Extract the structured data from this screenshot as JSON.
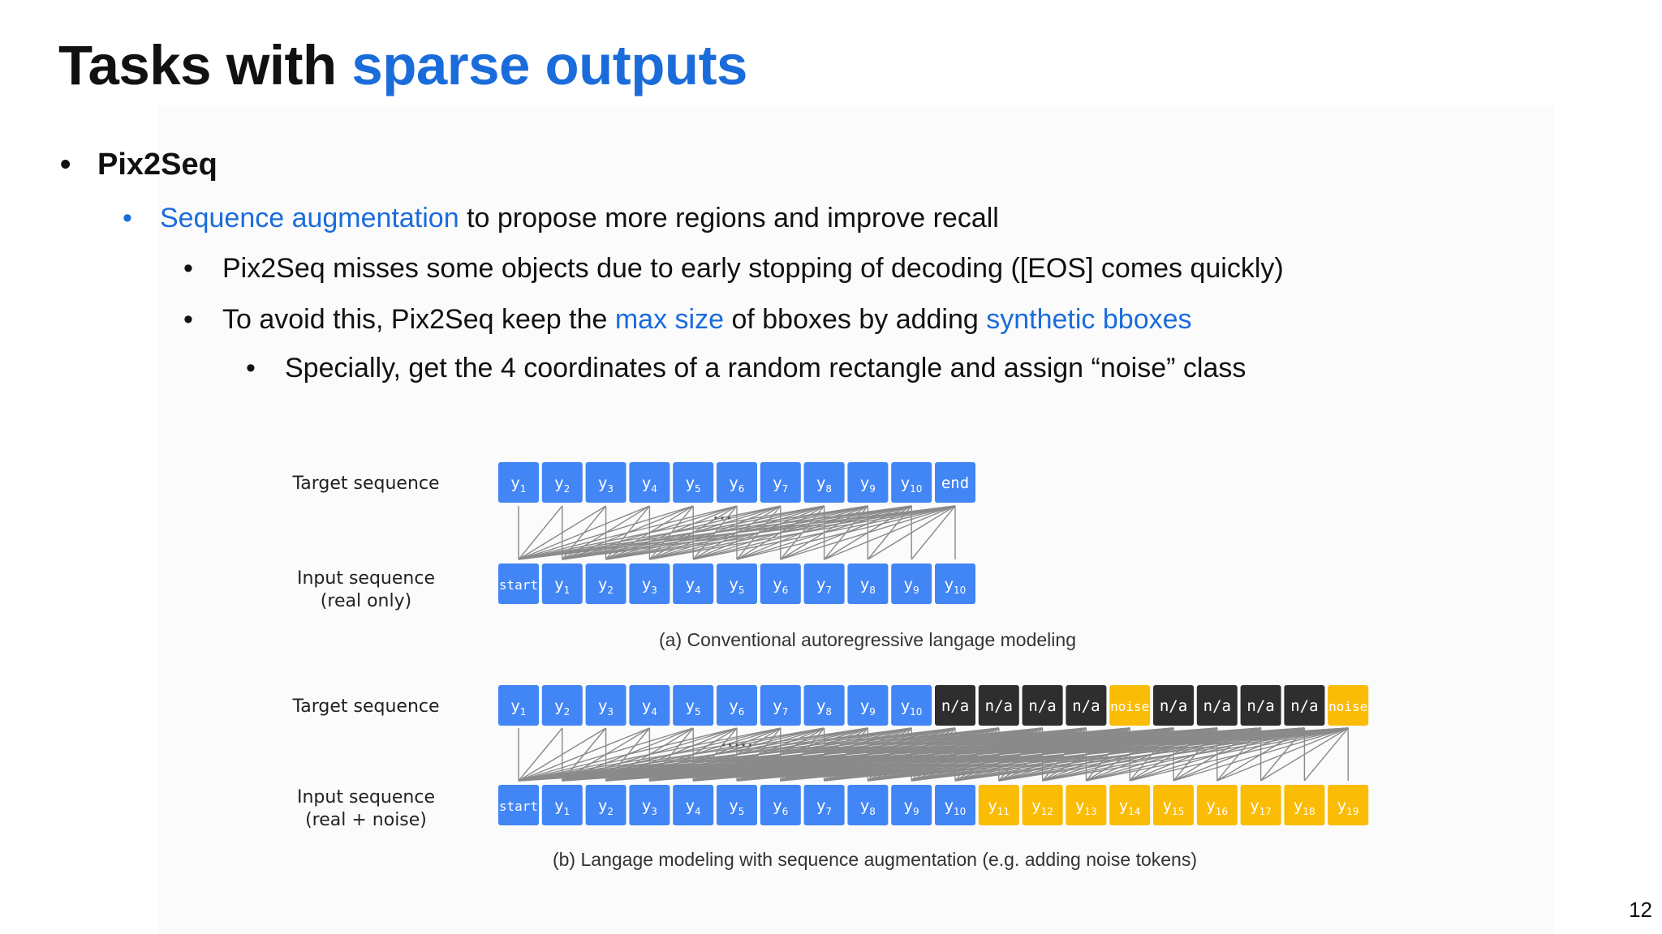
{
  "title": {
    "main": "Tasks with",
    "accent": "sparse outputs"
  },
  "bullets": {
    "level1": "Pix2Seq",
    "level2": {
      "accent": "Sequence augmentation",
      "rest": "to propose more regions and improve recall"
    },
    "level3_a": "Pix2Seq misses some objects due to early stopping of decoding ([EOS] comes quickly)",
    "level3_b": {
      "part1": "To avoid this, Pix2Seq keep the",
      "accent1": "max size",
      "part2": "of bboxes by adding",
      "accent2": "synthetic bboxes"
    },
    "level4": "Specially, get the 4 coordinates of a random rectangle and assign “noise” class"
  },
  "figure": {
    "colors": {
      "real": "#4285f4",
      "na": "#2e2e2e",
      "noise": "#fbbc05",
      "line": "#8a8a8a"
    },
    "a": {
      "target_label": "Target sequence",
      "input_label_1": "Input sequence",
      "input_label_2": "(real only)",
      "ellipsis": "···",
      "caption": "(a) Conventional autoregressive langage modeling",
      "target_tokens": [
        {
          "base": "y",
          "sub": "1",
          "kind": "real"
        },
        {
          "base": "y",
          "sub": "2",
          "kind": "real"
        },
        {
          "base": "y",
          "sub": "3",
          "kind": "real"
        },
        {
          "base": "y",
          "sub": "4",
          "kind": "real"
        },
        {
          "base": "y",
          "sub": "5",
          "kind": "real"
        },
        {
          "base": "y",
          "sub": "6",
          "kind": "real"
        },
        {
          "base": "y",
          "sub": "7",
          "kind": "real"
        },
        {
          "base": "y",
          "sub": "8",
          "kind": "real"
        },
        {
          "base": "y",
          "sub": "9",
          "kind": "real"
        },
        {
          "base": "y",
          "sub": "10",
          "kind": "real"
        },
        {
          "base": "end",
          "sub": "",
          "kind": "real"
        }
      ],
      "input_tokens": [
        {
          "base": "start",
          "sub": "",
          "kind": "real"
        },
        {
          "base": "y",
          "sub": "1",
          "kind": "real"
        },
        {
          "base": "y",
          "sub": "2",
          "kind": "real"
        },
        {
          "base": "y",
          "sub": "3",
          "kind": "real"
        },
        {
          "base": "y",
          "sub": "4",
          "kind": "real"
        },
        {
          "base": "y",
          "sub": "5",
          "kind": "real"
        },
        {
          "base": "y",
          "sub": "6",
          "kind": "real"
        },
        {
          "base": "y",
          "sub": "7",
          "kind": "real"
        },
        {
          "base": "y",
          "sub": "8",
          "kind": "real"
        },
        {
          "base": "y",
          "sub": "9",
          "kind": "real"
        },
        {
          "base": "y",
          "sub": "10",
          "kind": "real"
        }
      ]
    },
    "b": {
      "target_label": "Target sequence",
      "input_label_1": "Input sequence",
      "input_label_2": "(real + noise)",
      "ellipsis": "·····",
      "caption": "(b) Langage modeling with sequence augmentation (e.g. adding noise tokens)",
      "target_tokens": [
        {
          "base": "y",
          "sub": "1",
          "kind": "real"
        },
        {
          "base": "y",
          "sub": "2",
          "kind": "real"
        },
        {
          "base": "y",
          "sub": "3",
          "kind": "real"
        },
        {
          "base": "y",
          "sub": "4",
          "kind": "real"
        },
        {
          "base": "y",
          "sub": "5",
          "kind": "real"
        },
        {
          "base": "y",
          "sub": "6",
          "kind": "real"
        },
        {
          "base": "y",
          "sub": "7",
          "kind": "real"
        },
        {
          "base": "y",
          "sub": "8",
          "kind": "real"
        },
        {
          "base": "y",
          "sub": "9",
          "kind": "real"
        },
        {
          "base": "y",
          "sub": "10",
          "kind": "real"
        },
        {
          "base": "n/a",
          "sub": "",
          "kind": "na"
        },
        {
          "base": "n/a",
          "sub": "",
          "kind": "na"
        },
        {
          "base": "n/a",
          "sub": "",
          "kind": "na"
        },
        {
          "base": "n/a",
          "sub": "",
          "kind": "na"
        },
        {
          "base": "noise",
          "sub": "",
          "kind": "noise"
        },
        {
          "base": "n/a",
          "sub": "",
          "kind": "na"
        },
        {
          "base": "n/a",
          "sub": "",
          "kind": "na"
        },
        {
          "base": "n/a",
          "sub": "",
          "kind": "na"
        },
        {
          "base": "n/a",
          "sub": "",
          "kind": "na"
        },
        {
          "base": "noise",
          "sub": "",
          "kind": "noise"
        }
      ],
      "input_tokens": [
        {
          "base": "start",
          "sub": "",
          "kind": "real"
        },
        {
          "base": "y",
          "sub": "1",
          "kind": "real"
        },
        {
          "base": "y",
          "sub": "2",
          "kind": "real"
        },
        {
          "base": "y",
          "sub": "3",
          "kind": "real"
        },
        {
          "base": "y",
          "sub": "4",
          "kind": "real"
        },
        {
          "base": "y",
          "sub": "5",
          "kind": "real"
        },
        {
          "base": "y",
          "sub": "6",
          "kind": "real"
        },
        {
          "base": "y",
          "sub": "7",
          "kind": "real"
        },
        {
          "base": "y",
          "sub": "8",
          "kind": "real"
        },
        {
          "base": "y",
          "sub": "9",
          "kind": "real"
        },
        {
          "base": "y",
          "sub": "10",
          "kind": "real"
        },
        {
          "base": "y",
          "sub": "11",
          "kind": "noise"
        },
        {
          "base": "y",
          "sub": "12",
          "kind": "noise"
        },
        {
          "base": "y",
          "sub": "13",
          "kind": "noise"
        },
        {
          "base": "y",
          "sub": "14",
          "kind": "noise"
        },
        {
          "base": "y",
          "sub": "15",
          "kind": "noise"
        },
        {
          "base": "y",
          "sub": "16",
          "kind": "noise"
        },
        {
          "base": "y",
          "sub": "17",
          "kind": "noise"
        },
        {
          "base": "y",
          "sub": "18",
          "kind": "noise"
        },
        {
          "base": "y",
          "sub": "19",
          "kind": "noise"
        }
      ]
    }
  },
  "page_number": "12"
}
